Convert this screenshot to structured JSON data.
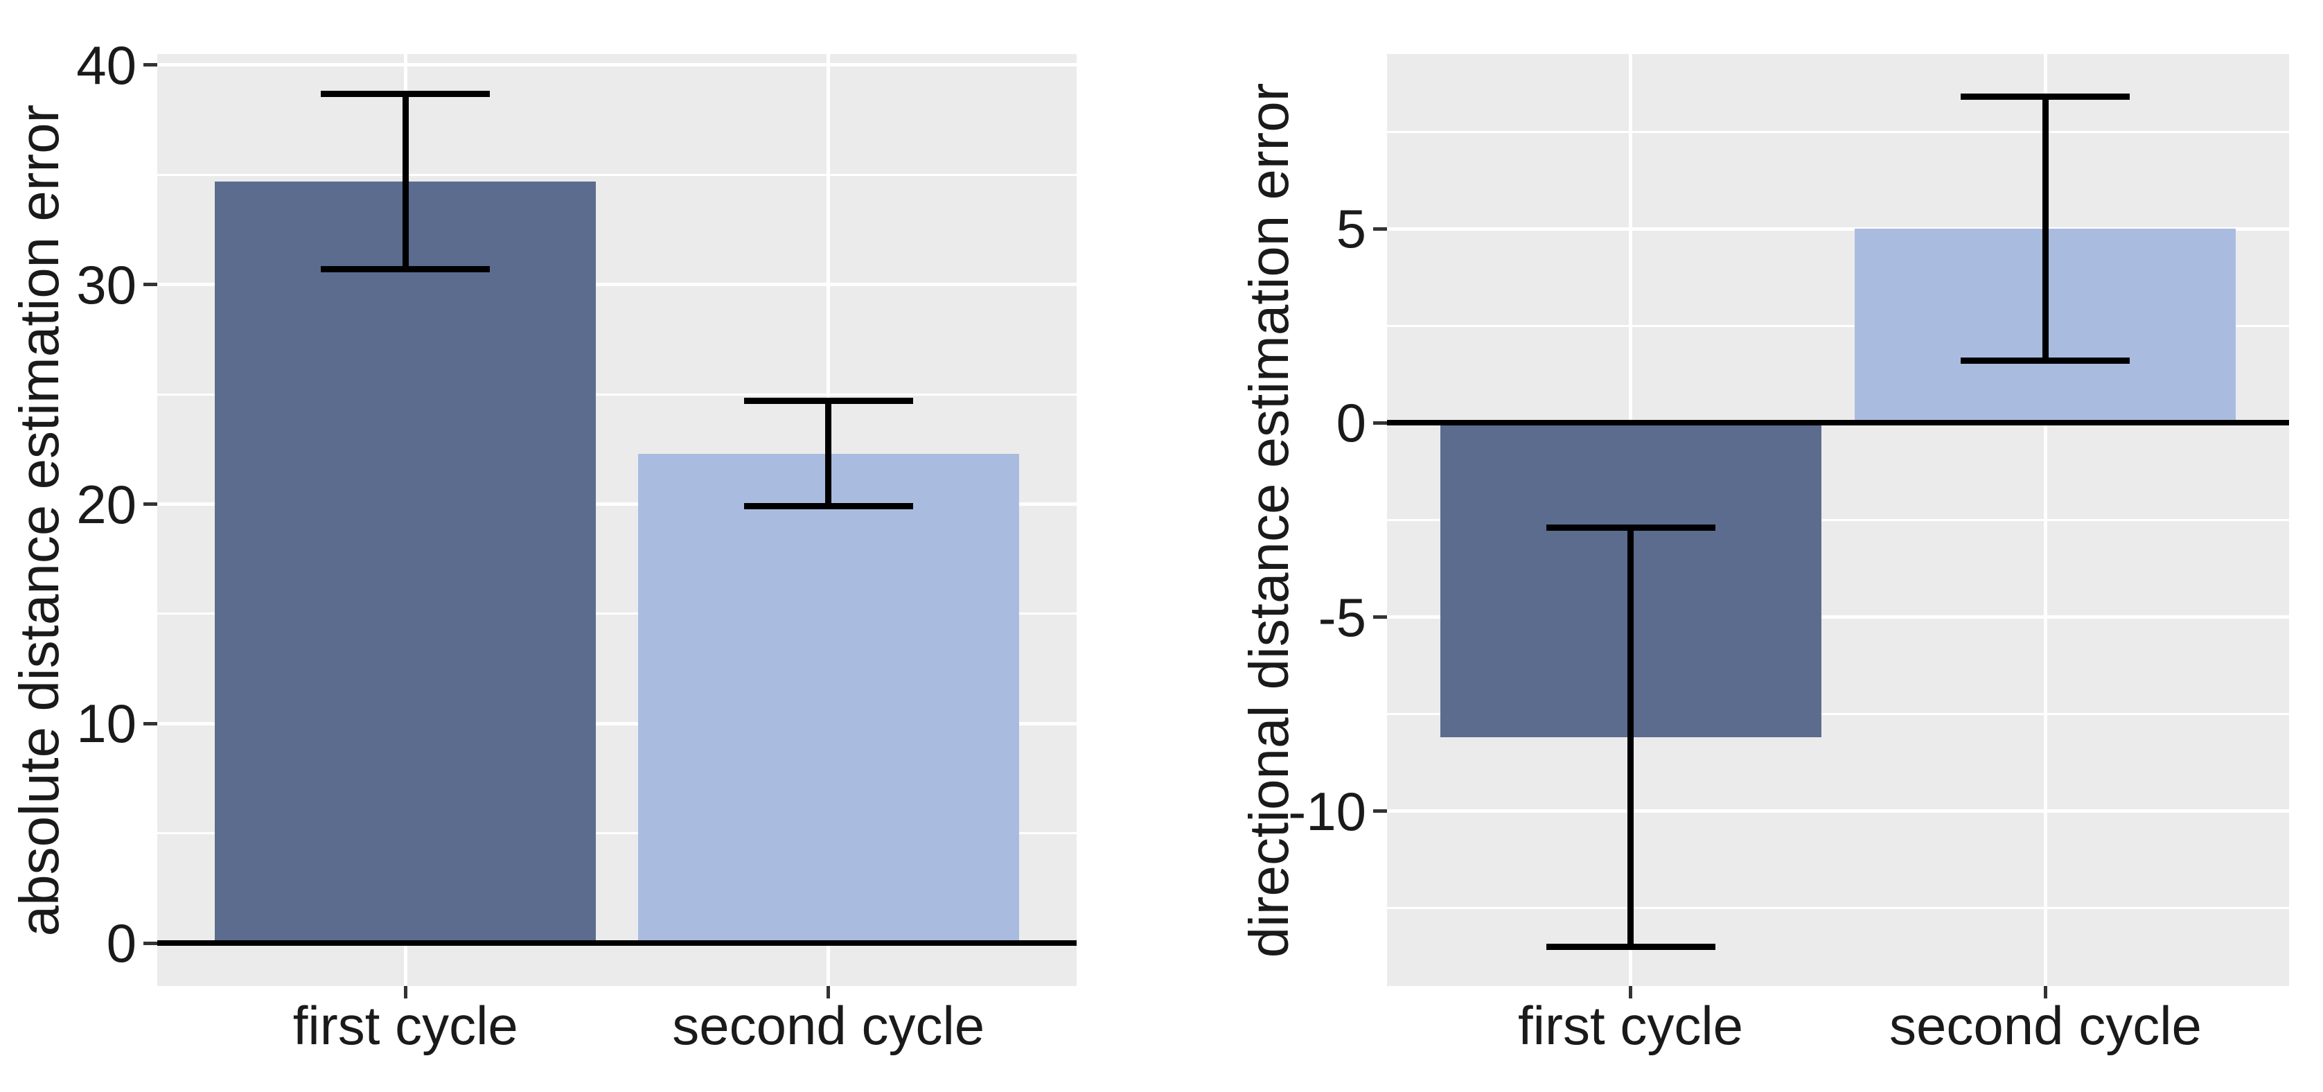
{
  "figure": {
    "background_color": "#ffffff",
    "panel_background_color": "#ebebeb",
    "gridline_color": "#ffffff",
    "axis_line_color": "#000000",
    "tick_mark_color": "#333333",
    "text_color": "#1a1a1a",
    "errorbar_color": "#000000"
  },
  "chart_data": [
    {
      "type": "bar",
      "title": "",
      "xlabel": "",
      "ylabel": "absolute distance estimation error",
      "categories": [
        "first cycle",
        "second cycle"
      ],
      "values": [
        34.7,
        22.3
      ],
      "series": [
        {
          "name": "absolute distance estimation error",
          "values": [
            34.7,
            22.3
          ],
          "error_low": [
            30.7,
            19.9
          ],
          "error_high": [
            38.7,
            24.7
          ]
        }
      ],
      "error_low": [
        30.7,
        19.9
      ],
      "error_high": [
        38.7,
        24.7
      ],
      "bar_colors": [
        "#5b6c8f",
        "#a9bce0"
      ],
      "yticks": [
        0,
        10,
        20,
        30,
        40
      ],
      "ytick_labels": [
        "0",
        "10",
        "20",
        "30",
        "40"
      ],
      "minor_ticks": [
        5,
        15,
        25,
        35
      ],
      "ylim": [
        -1.95,
        40.5
      ],
      "grid": true,
      "legend": false,
      "zero_line": true
    },
    {
      "type": "bar",
      "title": "",
      "xlabel": "",
      "ylabel": "directional distance estimation error",
      "categories": [
        "first cycle",
        "second cycle"
      ],
      "values": [
        -8.1,
        5.0
      ],
      "series": [
        {
          "name": "directional distance estimation error",
          "values": [
            -8.1,
            5.0
          ],
          "error_low": [
            -13.5,
            1.6
          ],
          "error_high": [
            -2.7,
            8.4
          ]
        }
      ],
      "error_low": [
        -13.5,
        1.6
      ],
      "error_high": [
        -2.7,
        8.4
      ],
      "bar_colors": [
        "#5b6c8f",
        "#a9bce0"
      ],
      "yticks": [
        -10,
        -5,
        0,
        5
      ],
      "ytick_labels": [
        "-10",
        "-5",
        "0",
        "5"
      ],
      "minor_ticks": [
        -12.5,
        -7.5,
        -2.5,
        2.5,
        7.5
      ],
      "ylim": [
        -14.5,
        9.5
      ],
      "grid": true,
      "legend": false,
      "zero_line": true
    }
  ]
}
